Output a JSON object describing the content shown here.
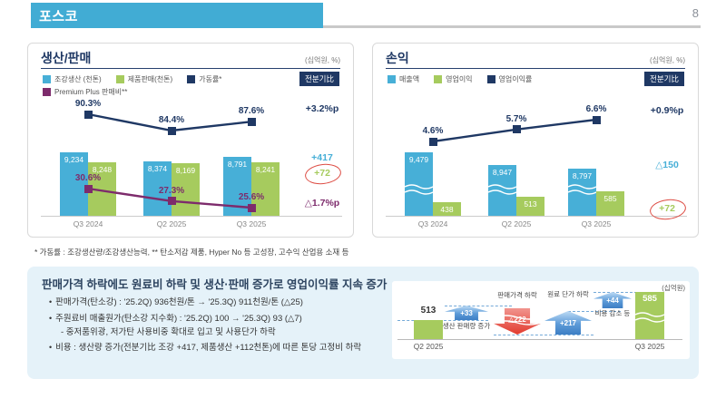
{
  "header": {
    "title": "포스코",
    "page_number": "8"
  },
  "cards": {
    "production": {
      "title": "생산/판매",
      "unit": "(십억원, %)",
      "badge": "전분기比",
      "legend": [
        {
          "label": "조강생산 (천톤)",
          "color": "#47AFD7"
        },
        {
          "label": "제품판매(천톤)",
          "color": "#A6CB5E"
        },
        {
          "label": "가동률*",
          "color": "#1F3864"
        },
        {
          "label": "Premium Plus 판매비**",
          "color": "#7D2B6C"
        }
      ],
      "legend_rows": [
        3,
        1
      ]
    },
    "profit": {
      "title": "손익",
      "unit": "(십억원, %)",
      "badge": "전분기比",
      "legend": [
        {
          "label": "매출액",
          "color": "#47AFD7"
        },
        {
          "label": "영업이익",
          "color": "#A6CB5E"
        },
        {
          "label": "영업이익률",
          "color": "#1F3864"
        }
      ],
      "legend_rows": [
        3
      ]
    }
  },
  "footnote": "* 가동률 : 조강생산량/조강생산능력, ** 탄소저감 제품, Hyper No 등 고성장, 고수익 산업용 소재 등",
  "summary": {
    "title": "판매가격 하락에도 원료비 하락 및 생산·판매 증가로 영업이익률 지속 증가",
    "bullet_marker": "•",
    "bullets": [
      {
        "text": "판매가격(탄소강) : '25.2Q) 936천원/톤 → '25.3Q) 911천원/톤 (△25)"
      },
      {
        "text": "주원료비 매출원가(탄소강 지수화) : '25.2Q) 100 → '25.3Q) 93 (△7)",
        "sub": "- 중저품위광, 저가탄 사용비중 확대로 입고 및 사용단가 하락"
      },
      {
        "text": "비용 : 생산량 증가(전분기比 조강 +417, 제품생산 +112천톤)에 따른 톤당 고정비 하락"
      }
    ]
  },
  "colors": {
    "accent_blue": "#41ACD4",
    "navy": "#1F3864",
    "cyan_bar": "#47AFD7",
    "green_bar": "#A6CB5E",
    "purple_line": "#7D2B6C",
    "highlight_red": "#DD4B42",
    "panel_bg": "#E5F2F9"
  },
  "chart_data": [
    {
      "id": "production_sales",
      "type": "bar",
      "title": "생산/판매",
      "unit_label": "(십억원, %)",
      "categories": [
        "Q3 2024",
        "Q2 2025",
        "Q3 2025"
      ],
      "series": [
        {
          "name": "조강생산 (천톤)",
          "type": "bar",
          "color": "#47AFD7",
          "values": [
            9234,
            8374,
            8791
          ],
          "value_labels": [
            "9,234",
            "8,374",
            "8,791"
          ],
          "delta": "+417"
        },
        {
          "name": "제품판매(천톤)",
          "type": "bar",
          "color": "#A6CB5E",
          "values": [
            8248,
            8169,
            8241
          ],
          "value_labels": [
            "8,248",
            "8,169",
            "8,241"
          ],
          "delta": "+72",
          "delta_circled": true
        },
        {
          "name": "가동률*",
          "type": "line",
          "color": "#1F3864",
          "values": [
            90.3,
            84.4,
            87.6
          ],
          "value_labels": [
            "90.3%",
            "84.4%",
            "87.6%"
          ],
          "delta": "+3.2%p"
        },
        {
          "name": "Premium Plus 판매비**",
          "type": "line",
          "color": "#7D2B6C",
          "values": [
            30.6,
            27.3,
            25.6
          ],
          "value_labels": [
            "30.6%",
            "27.3%",
            "25.6%"
          ],
          "delta": "△1.7%p"
        }
      ]
    },
    {
      "id": "profit_loss",
      "type": "bar",
      "title": "손익",
      "unit_label": "(십억원, %)",
      "categories": [
        "Q3 2024",
        "Q2 2025",
        "Q3 2025"
      ],
      "series": [
        {
          "name": "매출액",
          "type": "bar",
          "color": "#47AFD7",
          "axis_break": true,
          "values": [
            9479,
            8947,
            8797
          ],
          "value_labels": [
            "9,479",
            "8,947",
            "8,797"
          ],
          "delta": "△150"
        },
        {
          "name": "영업이익",
          "type": "bar",
          "color": "#A6CB5E",
          "values": [
            438,
            513,
            585
          ],
          "value_labels": [
            "438",
            "513",
            "585"
          ],
          "delta": "+72",
          "delta_circled": true
        },
        {
          "name": "영업이익률",
          "type": "line",
          "color": "#1F3864",
          "values": [
            4.6,
            5.7,
            6.6
          ],
          "value_labels": [
            "4.6%",
            "5.7%",
            "6.6%"
          ],
          "delta": "+0.9%p"
        }
      ]
    },
    {
      "id": "operating_profit_bridge",
      "type": "waterfall",
      "unit_label": "(십억원)",
      "start": {
        "category": "Q2 2025",
        "value": 513,
        "value_label": "513"
      },
      "end": {
        "category": "Q3 2025",
        "value": 585,
        "value_label": "585"
      },
      "steps": [
        {
          "label": "생산 판매량 증가",
          "value": 33,
          "value_label": "+33",
          "direction": "up"
        },
        {
          "label": "판매가격 하락",
          "value": -222,
          "value_label": "△222",
          "direction": "down",
          "broken": true
        },
        {
          "label": "원료 단가 하락",
          "value": 217,
          "value_label": "+217",
          "direction": "up"
        },
        {
          "label": "비용 감소 등",
          "value": 44,
          "value_label": "+44",
          "direction": "up"
        }
      ]
    }
  ]
}
